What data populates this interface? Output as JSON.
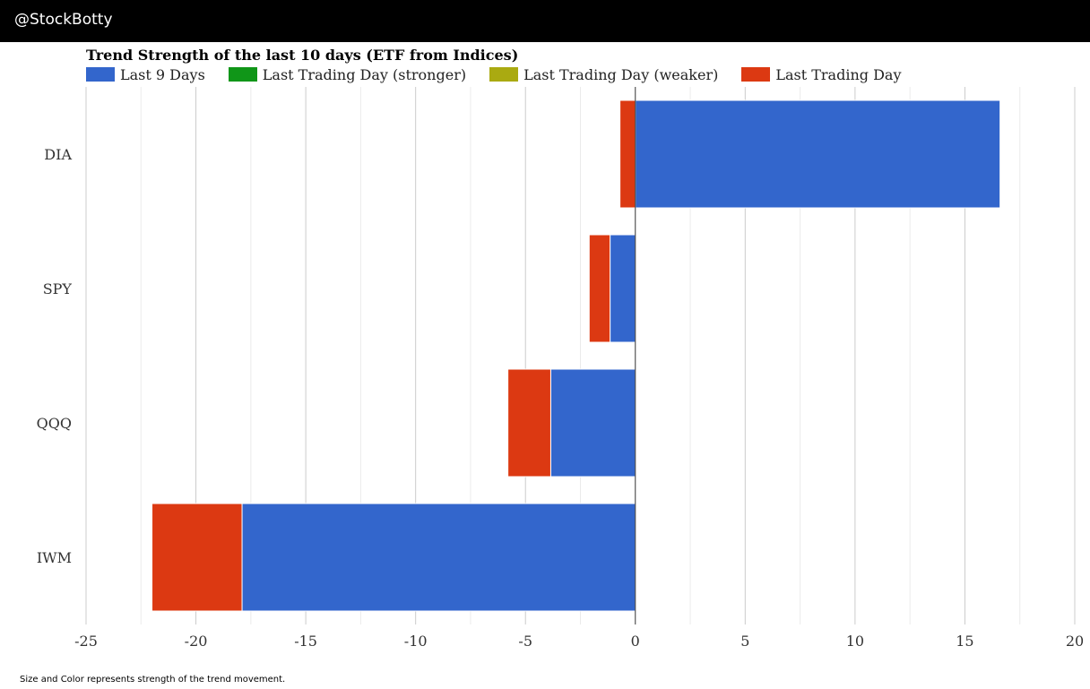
{
  "header": {
    "brand": "@StockBotty"
  },
  "footer": {
    "note": "Size and Color represents strength of the trend movement."
  },
  "colors": {
    "last9": "#3366cc",
    "stronger": "#109618",
    "weaker": "#aaaa11",
    "lastday": "#dc3912",
    "grid_major": "#cccccc",
    "grid_minor": "#ebebeb",
    "axis": "#333333"
  },
  "chart_data": {
    "type": "bar",
    "orientation": "horizontal",
    "stacked": true,
    "title": "Trend Strength of the last 10 days (ETF from Indices)",
    "legend": [
      {
        "name": "Last 9 Days",
        "color": "#3366cc"
      },
      {
        "name": "Last Trading Day (stronger)",
        "color": "#109618"
      },
      {
        "name": "Last Trading Day (weaker)",
        "color": "#aaaa11"
      },
      {
        "name": "Last Trading Day",
        "color": "#dc3912"
      }
    ],
    "legend_position": "top-left",
    "categories": [
      "DIA",
      "SPY",
      "QQQ",
      "IWM"
    ],
    "series": [
      {
        "name": "Last 9 Days",
        "color": "#3366cc",
        "values": [
          16.6,
          -1.15,
          -3.85,
          -17.9
        ]
      },
      {
        "name": "Last Trading Day",
        "color": "#dc3912",
        "values": [
          -0.7,
          -0.95,
          -1.95,
          -4.1
        ]
      }
    ],
    "xlim": [
      -25,
      20
    ],
    "xticks": [
      -25,
      -20,
      -15,
      -10,
      -5,
      0,
      5,
      10,
      15,
      20
    ],
    "xtick_labels": [
      "-25",
      "-20",
      "-15",
      "-10",
      "-5",
      "0",
      "5",
      "10",
      "15",
      "20"
    ],
    "grid": true
  }
}
